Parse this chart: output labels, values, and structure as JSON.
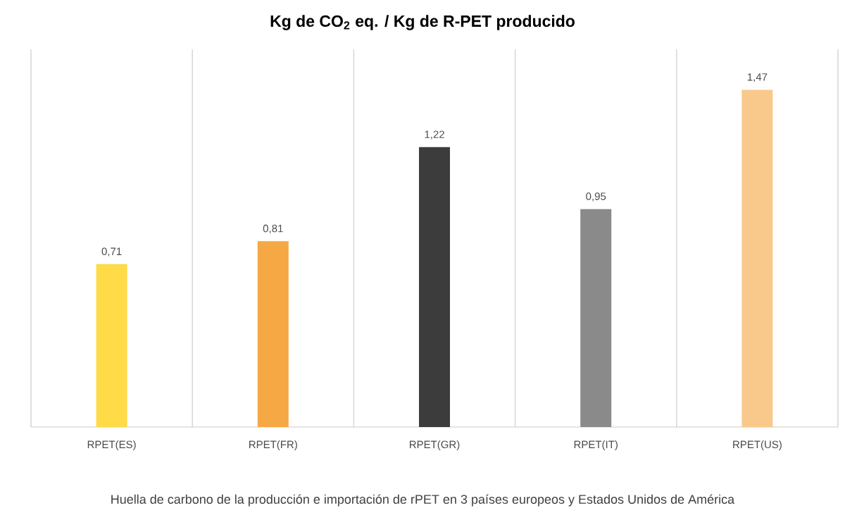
{
  "chart_data": {
    "type": "bar",
    "title": "Kg de CO$_{2}$ eq. / Kg de R-PET producido",
    "categories": [
      "RPET(ES)",
      "RPET(FR)",
      "RPET(GR)",
      "RPET(IT)",
      "RPET(US)"
    ],
    "values": [
      0.71,
      0.81,
      1.22,
      0.95,
      1.47
    ],
    "colors": [
      "#fedb47",
      "#f5a843",
      "#3c3c3c",
      "#8a8a8a",
      "#f9c98c"
    ],
    "value_labels": [
      "0,71",
      "0,81",
      "1,22",
      "0,95",
      "1,47"
    ],
    "grid": "x",
    "annotations": [
      "Huella de carbono de la producción e importación de rPET en 3 países europeos y Estados Unidos de América"
    ]
  }
}
